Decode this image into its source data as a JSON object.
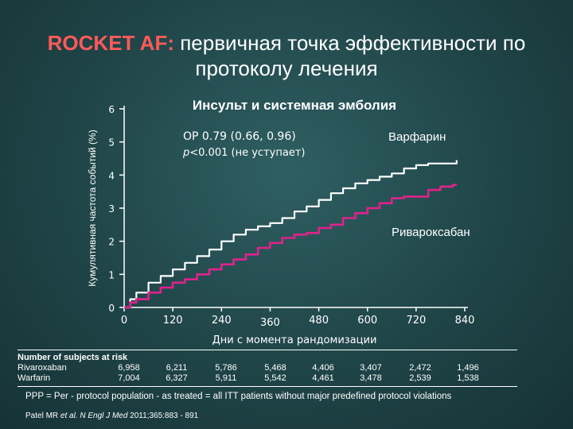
{
  "title": {
    "prefix": "ROCKET AF:",
    "rest": " первичная точка эффективности по протоколу лечения"
  },
  "chart_data": {
    "type": "line",
    "title": "Инсульт и системная эмболия",
    "xlabel": "Дни с момента рандомизации",
    "ylabel": "Кумулятивная частота событий (%)",
    "xlim": [
      0,
      840
    ],
    "ylim": [
      0,
      6
    ],
    "x_ticks": [
      "0",
      "120",
      "240",
      "360",
      "480",
      "600",
      "720",
      "840"
    ],
    "y_ticks": [
      "0",
      "1",
      "2",
      "3",
      "4",
      "5",
      "6"
    ],
    "annotations": {
      "hr": "ОР 0.79 (0.66, 0.96)",
      "p_prefix": "p",
      "p_rest": "<0.001 (не уступает)"
    },
    "series": [
      {
        "name": "Варфарин",
        "color": "#ffffff",
        "x": [
          0,
          15,
          30,
          60,
          90,
          120,
          150,
          180,
          210,
          240,
          270,
          300,
          330,
          360,
          390,
          420,
          450,
          480,
          510,
          540,
          570,
          600,
          630,
          660,
          690,
          720,
          750,
          780,
          810,
          820
        ],
        "y": [
          0,
          0.25,
          0.45,
          0.75,
          0.95,
          1.15,
          1.35,
          1.55,
          1.75,
          2.0,
          2.2,
          2.35,
          2.45,
          2.55,
          2.7,
          2.9,
          3.05,
          3.25,
          3.45,
          3.6,
          3.75,
          3.85,
          3.95,
          4.05,
          4.2,
          4.3,
          4.35,
          4.35,
          4.35,
          4.45
        ]
      },
      {
        "name": "Ривароксабан",
        "color": "#e0228c",
        "x": [
          0,
          15,
          30,
          60,
          90,
          120,
          150,
          180,
          210,
          240,
          270,
          300,
          330,
          360,
          390,
          420,
          450,
          480,
          510,
          540,
          570,
          600,
          630,
          660,
          690,
          720,
          750,
          780,
          810,
          820
        ],
        "y": [
          0,
          0.15,
          0.25,
          0.45,
          0.6,
          0.75,
          0.85,
          1.0,
          1.15,
          1.3,
          1.45,
          1.6,
          1.8,
          1.95,
          2.1,
          2.2,
          2.25,
          2.4,
          2.5,
          2.7,
          2.85,
          3.0,
          3.15,
          3.3,
          3.35,
          3.35,
          3.55,
          3.65,
          3.7,
          3.7
        ]
      }
    ]
  },
  "risk_table": {
    "header": "Number of subjects at risk",
    "rows": [
      {
        "label": "Rivaroxaban",
        "values": [
          "6,958",
          "6,211",
          "5,786",
          "5,468",
          "4,406",
          "3,407",
          "2,472",
          "1,496"
        ]
      },
      {
        "label": "Warfarin",
        "values": [
          "7,004",
          "6,327",
          "5,911",
          "5,542",
          "4,461",
          "3,478",
          "2,539",
          "1,538"
        ]
      }
    ]
  },
  "footnote": "PPP = Per - protocol population - as treated = all ITT patients without major predefined protocol violations",
  "reference": {
    "authors": "Patel MR ",
    "etal": "et al.",
    "journal": " N Engl J Med",
    "rest": " 2011;365:883 - 891"
  }
}
